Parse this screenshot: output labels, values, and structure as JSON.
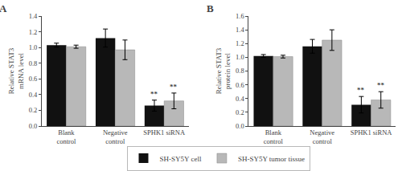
{
  "chart_data": [
    {
      "type": "bar",
      "title": "A",
      "ylabel": "Relative STAT3\nmRNA level",
      "categories": [
        "Blank\ncontrol",
        "Negative\ncontrol",
        "SPHK1 siRNA"
      ],
      "series": [
        {
          "name": "SH-SY5Y cell",
          "color": "#111111",
          "values": [
            1.03,
            1.12,
            0.26
          ],
          "errors": [
            0.025,
            0.115,
            0.07
          ]
        },
        {
          "name": "SH-SY5Y tumor tissue",
          "color": "#b8b8b8",
          "values": [
            1.01,
            0.97,
            0.32
          ],
          "errors": [
            0.02,
            0.125,
            0.1
          ]
        }
      ],
      "annotations": [
        {
          "text": "**",
          "category": "SPHK1 siRNA",
          "series": "SH-SY5Y cell"
        },
        {
          "text": "**",
          "category": "SPHK1 siRNA",
          "series": "SH-SY5Y tumor tissue"
        }
      ],
      "ylim": [
        0,
        1.4
      ],
      "yticks": [
        {
          "value": 0,
          "label": "0.0"
        },
        0.2,
        0.4,
        0.6,
        0.8,
        {
          "value": 1,
          "label": "1.0"
        },
        1.2,
        1.4
      ],
      "grid": false,
      "legend": "bottom"
    },
    {
      "type": "bar",
      "title": "B",
      "ylabel": "Relative STAT3\nprotein level",
      "categories": [
        "Blank\ncontrol",
        "Negative\ncontrol",
        "SPHK1 siRNA"
      ],
      "series": [
        {
          "name": "SH-SY5Y cell",
          "color": "#111111",
          "values": [
            1.02,
            1.16,
            0.31
          ],
          "errors": [
            0.02,
            0.1,
            0.12
          ]
        },
        {
          "name": "SH-SY5Y tumor tissue",
          "color": "#b8b8b8",
          "values": [
            1.01,
            1.25,
            0.38
          ],
          "errors": [
            0.02,
            0.15,
            0.12
          ]
        }
      ],
      "annotations": [
        {
          "text": "**",
          "category": "SPHK1 siRNA",
          "series": "SH-SY5Y cell"
        },
        {
          "text": "**",
          "category": "SPHK1 siRNA",
          "series": "SH-SY5Y tumor tissue"
        }
      ],
      "ylim": [
        0,
        1.6
      ],
      "yticks": [
        {
          "value": 0,
          "label": "0.0"
        },
        0.2,
        0.4,
        0.6,
        0.8,
        {
          "value": 1,
          "label": "1.0"
        },
        1.2,
        1.4,
        1.6
      ],
      "grid": false
    }
  ]
}
